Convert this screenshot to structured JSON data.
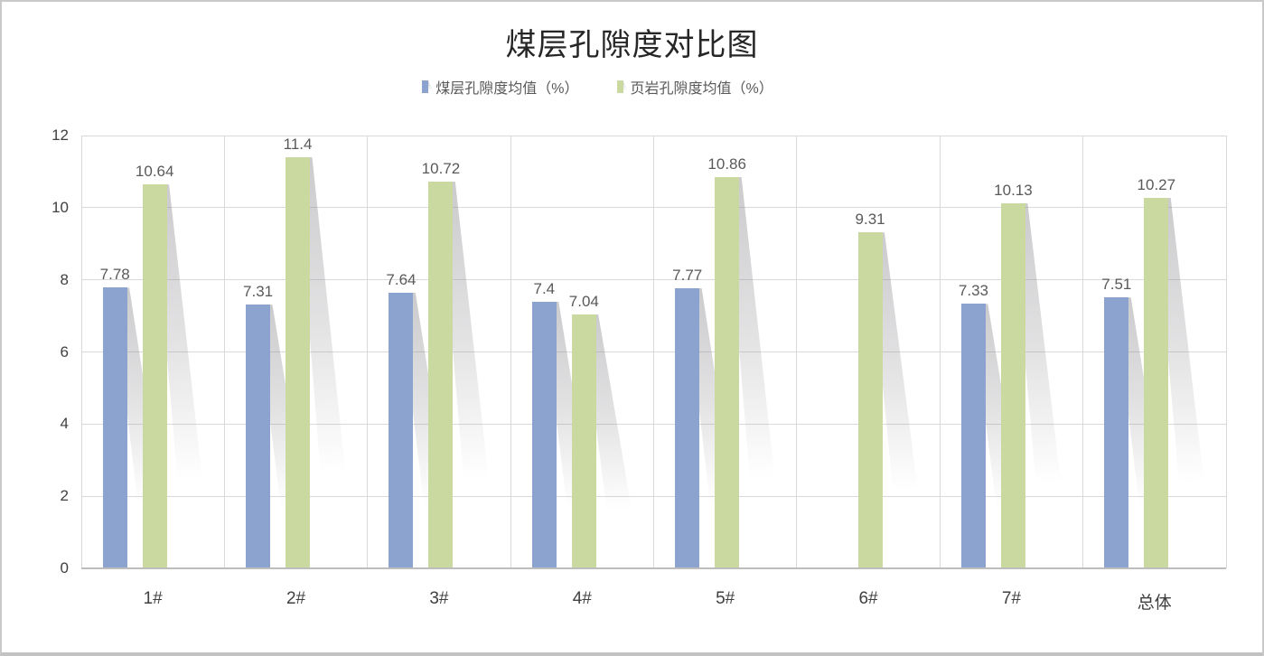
{
  "chart_data": {
    "type": "bar",
    "title": "煤层孔隙度对比图",
    "categories": [
      "1#",
      "2#",
      "3#",
      "4#",
      "5#",
      "6#",
      "7#",
      "总体"
    ],
    "series": [
      {
        "name": "煤层孔隙度均值（%）",
        "color": "#8CA2CF",
        "values": [
          7.78,
          7.31,
          7.64,
          7.4,
          7.77,
          null,
          7.33,
          7.51
        ]
      },
      {
        "name": "页岩孔隙度均值（%）",
        "color": "#C9D9A0",
        "values": [
          10.64,
          11.4,
          10.72,
          7.04,
          10.86,
          9.31,
          10.13,
          10.27
        ]
      }
    ],
    "ylim": [
      0,
      12
    ],
    "yticks": [
      0,
      2,
      4,
      6,
      8,
      10,
      12
    ],
    "grid": true,
    "vertical_grid": true,
    "legend_position": "top",
    "data_labels": true,
    "bar_effect": "perspective-shadow"
  },
  "colors": {
    "coal_series": "#8CA2CF",
    "shale_series": "#C9D9A0",
    "gridline": "#D9D9D9",
    "axis_line": "#BDBDBD",
    "tick_label": "#404040",
    "value_label": "#595959",
    "title": "#262626",
    "canvas_border": "#C9C9C9"
  }
}
